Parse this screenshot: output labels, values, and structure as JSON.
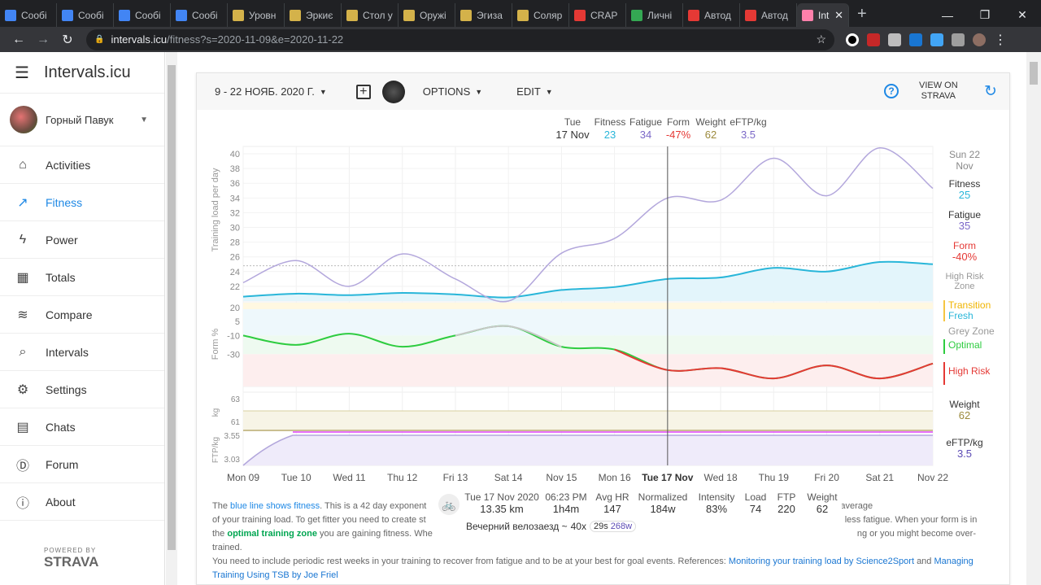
{
  "browser": {
    "tabs": [
      {
        "label": "Сообі",
        "color": "#4285f4"
      },
      {
        "label": "Сообі",
        "color": "#4285f4"
      },
      {
        "label": "Сообі",
        "color": "#4285f4"
      },
      {
        "label": "Сообі",
        "color": "#4285f4"
      },
      {
        "label": "Уровн",
        "color": "#d4b24a"
      },
      {
        "label": "Эркиє",
        "color": "#d4b24a"
      },
      {
        "label": "Стол у",
        "color": "#d4b24a"
      },
      {
        "label": "Оружі",
        "color": "#d4b24a"
      },
      {
        "label": "Эгиза",
        "color": "#d4b24a"
      },
      {
        "label": "Соляр",
        "color": "#d4b24a"
      },
      {
        "label": "CRAP",
        "color": "#e53935"
      },
      {
        "label": "Личні",
        "color": "#34a853"
      },
      {
        "label": "Автод",
        "color": "#e53935"
      },
      {
        "label": "Автод",
        "color": "#e53935"
      }
    ],
    "active_tab": "Int",
    "url_host": "intervals.icu",
    "url_path": "/fitness?s=2020-11-09&e=2020-11-22"
  },
  "sidebar": {
    "brand": "Intervals.icu",
    "user": "Горный Павук",
    "items": [
      {
        "label": "Activities",
        "icon": "home-icon"
      },
      {
        "label": "Fitness",
        "icon": "trending-up-icon"
      },
      {
        "label": "Power",
        "icon": "lightning-icon"
      },
      {
        "label": "Totals",
        "icon": "calendar-clock-icon"
      },
      {
        "label": "Compare",
        "icon": "compare-icon"
      },
      {
        "label": "Intervals",
        "icon": "search-icon"
      },
      {
        "label": "Settings",
        "icon": "gear-icon"
      },
      {
        "label": "Chats",
        "icon": "chat-icon"
      },
      {
        "label": "Forum",
        "icon": "forum-icon"
      },
      {
        "label": "About",
        "icon": "info-icon"
      }
    ],
    "powered": "POWERED BY",
    "strava": "STRAVA"
  },
  "toolbar": {
    "date_range": "9 - 22 НОЯБ. 2020 Г.",
    "options": "OPTIONS",
    "edit": "EDIT",
    "view_on": "VIEW ON",
    "strava": "STRAVA"
  },
  "hover": {
    "day": "Tue",
    "date": "17 Nov",
    "fitness_label": "Fitness",
    "fitness": "23",
    "fatigue_label": "Fatigue",
    "fatigue": "34",
    "form_label": "Form",
    "form": "-47%",
    "weight_label": "Weight",
    "weight": "62",
    "eftp_label": "eFTP/kg",
    "eftp": "3.5"
  },
  "right_panel": {
    "day": "Sun 22",
    "month": "Nov",
    "fitness_label": "Fitness",
    "fitness": "25",
    "fatigue_label": "Fatigue",
    "fatigue": "35",
    "form_label": "Form",
    "form": "-40%",
    "high_risk_zone": "High Risk Zone",
    "transition": "Transition",
    "fresh": "Fresh",
    "grey_zone": "Grey Zone",
    "optimal": "Optimal",
    "high_risk": "High Risk",
    "weight_label": "Weight",
    "weight": "62",
    "eftp_label": "eFTP/kg",
    "eftp": "3.5"
  },
  "colors": {
    "fitness": "#29b6d9",
    "fatigue": "#7b68c8",
    "form_neg": "#e53935",
    "weight": "#9c8a3c",
    "optimal": "#2ecc40",
    "accent": "#1e88e5"
  },
  "chart_data": {
    "type": "line",
    "x": [
      "Mon 09",
      "Tue 10",
      "Wed 11",
      "Thu 12",
      "Fri 13",
      "Sat 14",
      "Nov 15",
      "Mon 16",
      "Tue 17 Nov",
      "Wed 18",
      "Thu 19",
      "Fri 20",
      "Sat 21",
      "Nov 22"
    ],
    "ylabel": "Training load per day",
    "yticks": [
      40,
      38,
      36,
      34,
      32,
      30,
      28,
      26,
      24,
      22
    ],
    "series": [
      {
        "name": "Fitness",
        "values": [
          20.6,
          21,
          20.8,
          21.1,
          20.9,
          20.5,
          21.5,
          21.9,
          23,
          23.2,
          24.5,
          24,
          25.3,
          25
        ]
      },
      {
        "name": "Fatigue",
        "values": [
          22.5,
          25.5,
          22,
          26.4,
          23,
          20,
          26.5,
          28.5,
          34,
          33.7,
          39.4,
          34.3,
          40.8,
          35.3
        ]
      }
    ],
    "form": {
      "ylabel": "Form %",
      "yticks": [
        20,
        5,
        -10,
        -30
      ],
      "values": [
        -10,
        -20,
        -8,
        -22,
        -10,
        0,
        -22,
        -25,
        -47,
        -45,
        -56,
        -42,
        -56,
        -40
      ]
    },
    "weight": {
      "ylabel": "kg",
      "yticks": [
        63,
        61
      ],
      "values": [
        62,
        62,
        62,
        62,
        62,
        62,
        62,
        62,
        62,
        62,
        62,
        62,
        62,
        62
      ]
    },
    "eftp": {
      "ylabel": "FTP/kg",
      "yticks": [
        3.55,
        3.03
      ],
      "values": [
        3.03,
        3.55,
        3.55,
        3.55,
        3.55,
        3.55,
        3.55,
        3.55,
        3.55,
        3.55,
        3.55,
        3.55,
        3.55,
        3.55
      ]
    }
  },
  "activity": {
    "date": "Tue 17 Nov 2020",
    "distance": "13.35 km",
    "time": "06:23 PM",
    "duration": "1h4m",
    "avg_hr_label": "Avg HR",
    "avg_hr": "147",
    "normalized_label": "Normalized",
    "normalized": "184w",
    "intensity_label": "Intensity",
    "intensity": "83%",
    "load_label": "Load",
    "load": "74",
    "ftp_label": "FTP",
    "ftp": "220",
    "weight_label": "Weight",
    "weight": "62",
    "name": "Вечерний велозаезд ~",
    "interval": "40x",
    "interval_time": "29s",
    "interval_power": "268w"
  },
  "description": {
    "p1": "The",
    "blue": "blue line shows fitness",
    "p2": ". This is a 42 day exponent",
    "p3": "nentially weighted moving average",
    "p4": "of your training load. To get fitter you need to create st",
    "p5": "less fatigue. When your form is in",
    "p6": "the",
    "green": "optimal training zone",
    "p7": "you are gaining fitness. Whe",
    "p8": "ng or you might become over-trained.",
    "p9": "You need to include periodic rest weeks in your training to recover from fatigue and to be at your best for goal events. References:",
    "link1": "Monitoring your training load by Science2Sport",
    "and": "and",
    "link2": "Managing Training Using TSB by Joe Friel"
  }
}
